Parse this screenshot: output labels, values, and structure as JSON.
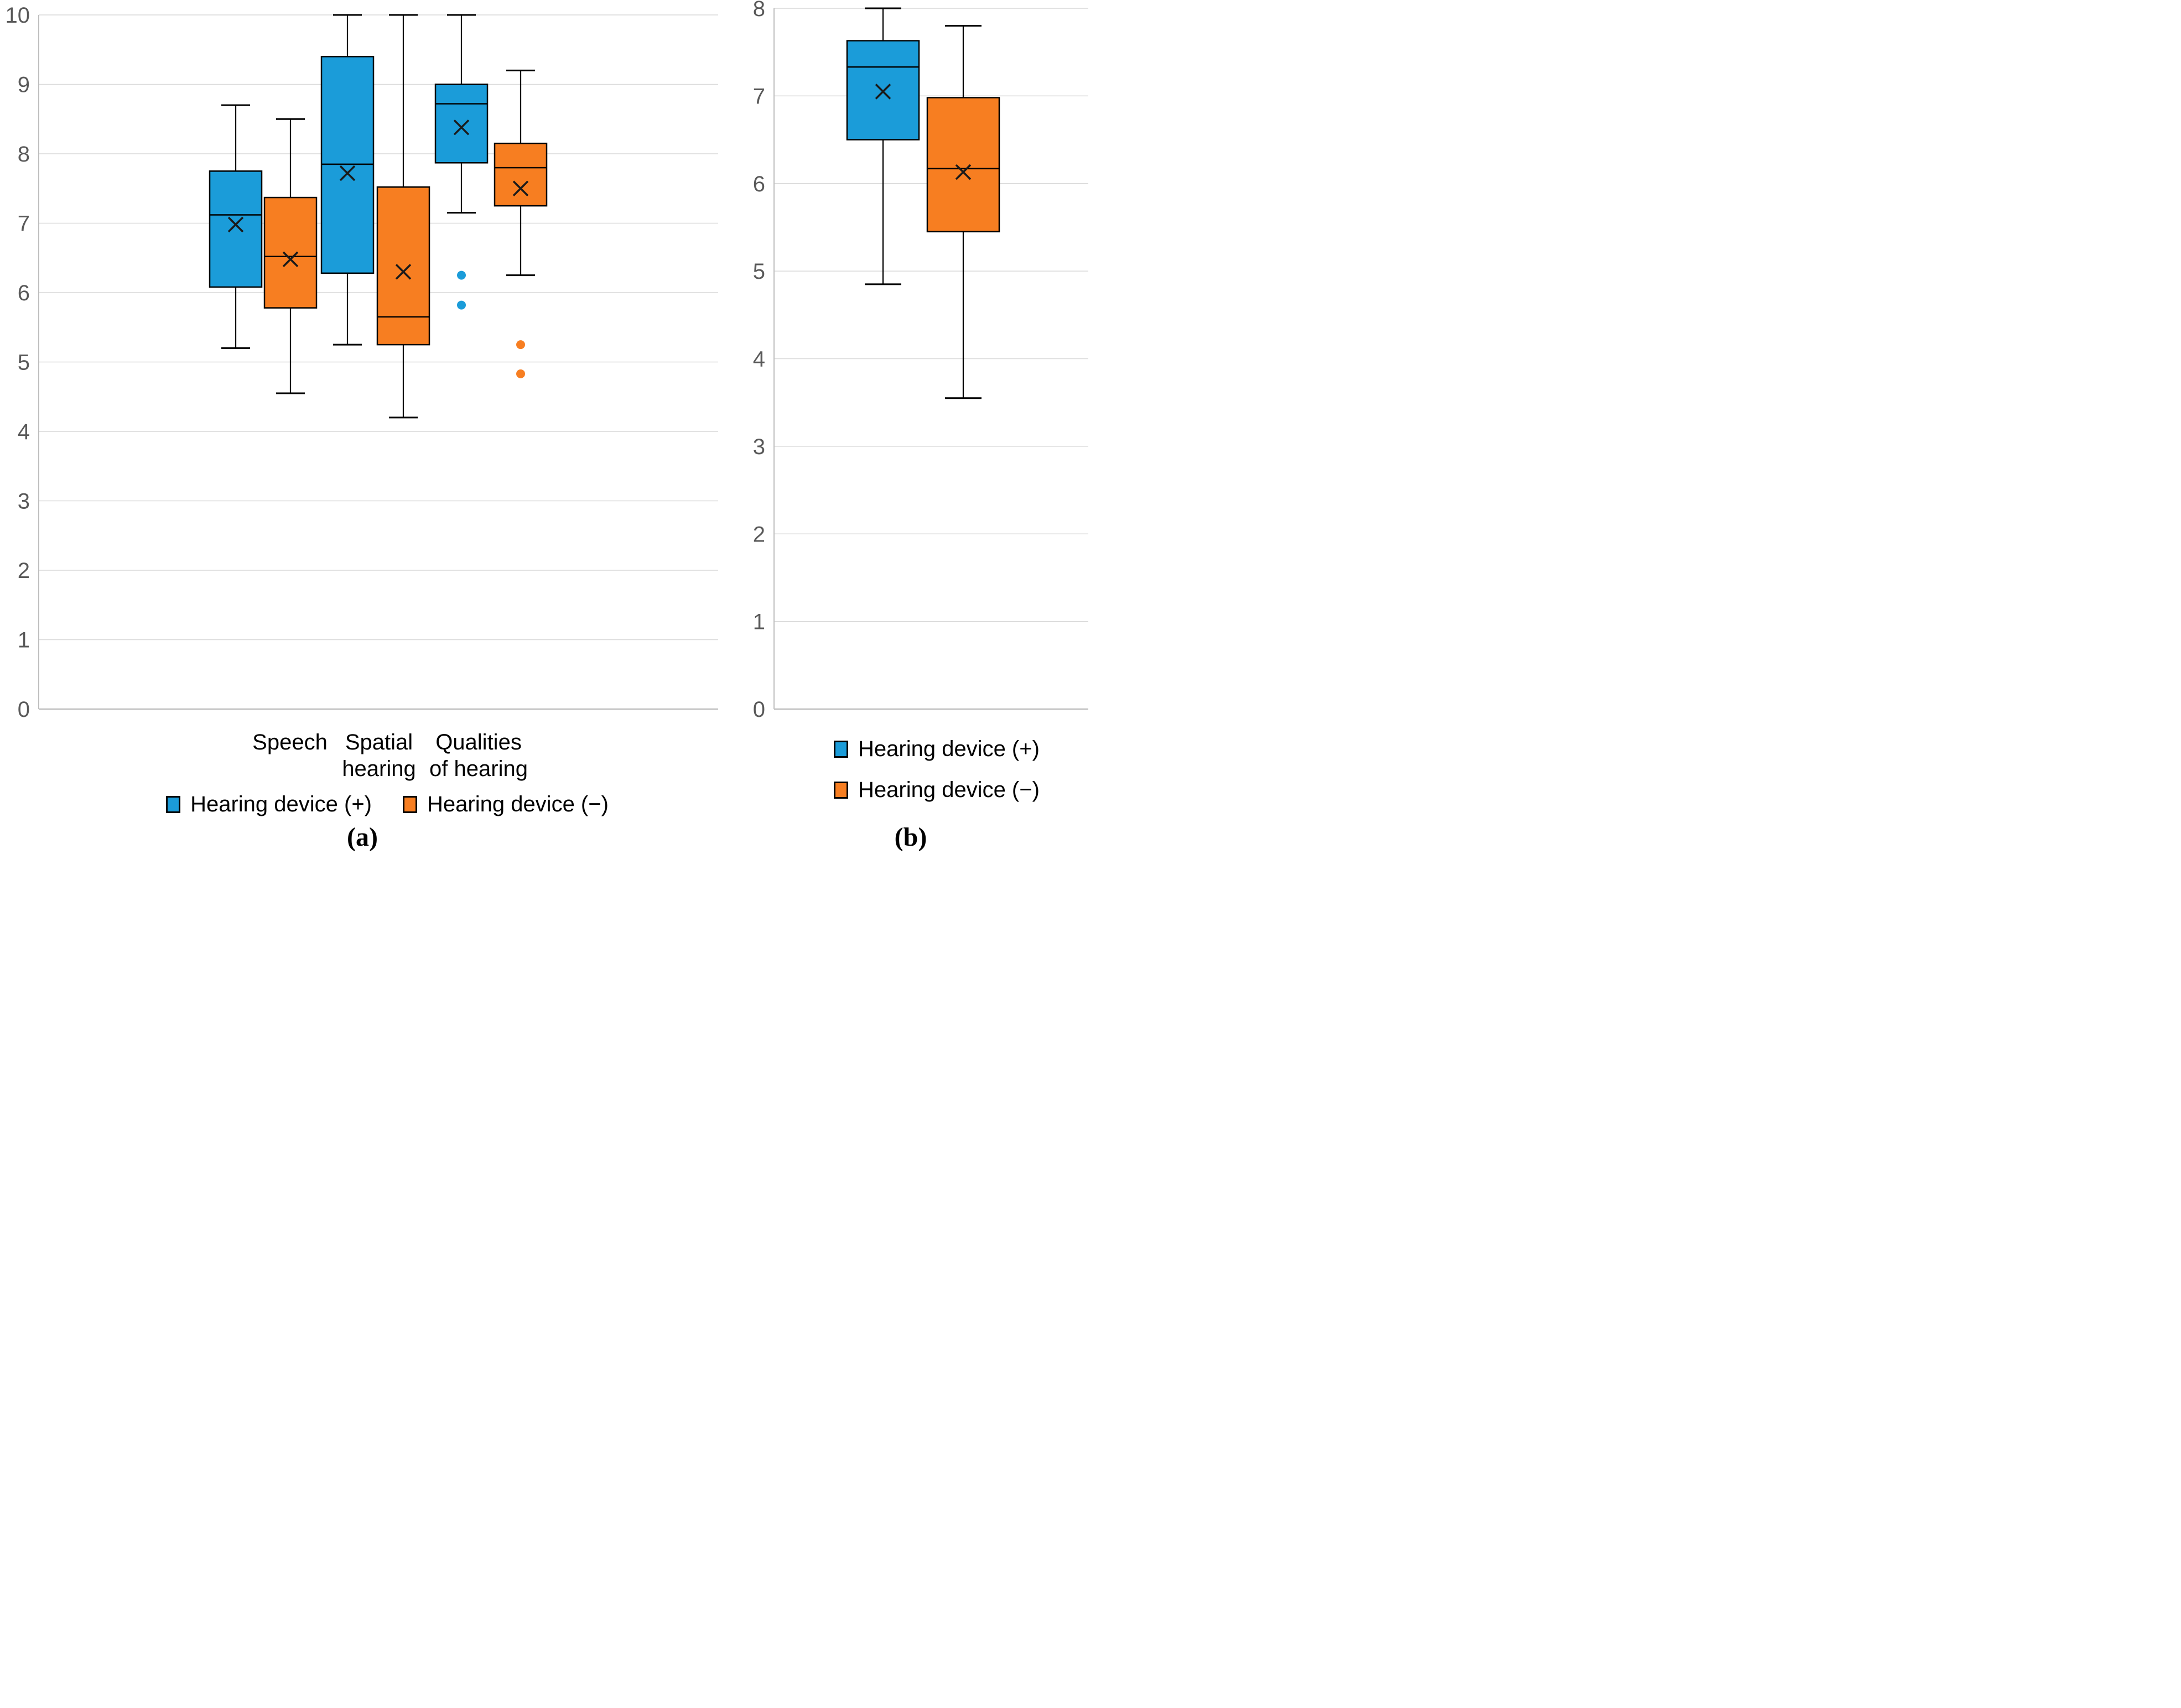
{
  "colors": {
    "series_positive": "#1B9CD9",
    "series_negative": "#F77E21",
    "gridline": "#D9D9D9",
    "axis_line": "#BFBFBF",
    "tick_text": "#595959",
    "box_stroke": "#000000"
  },
  "chart_data": [
    {
      "type": "boxplot",
      "caption": "(a)",
      "title": "",
      "xlabel": "",
      "ylabel": "",
      "ylim": [
        0,
        10
      ],
      "grid": true,
      "legend_position": "bottom-row",
      "yticks": [
        10,
        9,
        8,
        7,
        6,
        5,
        4,
        3,
        2,
        1,
        0
      ],
      "categories": [
        "Speech",
        "Spatial hearing",
        "Qualities of hearing"
      ],
      "category_label_lines": [
        [
          "Speech",
          ""
        ],
        [
          "Spatial",
          "hearing"
        ],
        [
          "Qualities",
          "of hearing"
        ]
      ],
      "series": [
        {
          "name": "Hearing device (+)",
          "color": "#1B9CD9",
          "points": [
            {
              "category": "Speech",
              "min": 5.2,
              "q1": 6.08,
              "median": 7.12,
              "q3": 7.75,
              "max": 8.7,
              "mean": 6.98,
              "outliers": []
            },
            {
              "category": "Spatial hearing",
              "min": 5.25,
              "q1": 6.28,
              "median": 7.85,
              "q3": 9.4,
              "max": 10,
              "mean": 7.72,
              "outliers": []
            },
            {
              "category": "Qualities of hearing",
              "min": 7.15,
              "q1": 7.87,
              "median": 8.72,
              "q3": 9.0,
              "max": 10,
              "mean": 8.38,
              "outliers": [
                6.25,
                5.82
              ]
            }
          ]
        },
        {
          "name": "Hearing device (−)",
          "color": "#F77E21",
          "points": [
            {
              "category": "Speech",
              "min": 4.55,
              "q1": 5.78,
              "median": 6.52,
              "q3": 7.37,
              "max": 8.5,
              "mean": 6.48,
              "outliers": []
            },
            {
              "category": "Spatial hearing",
              "min": 4.2,
              "q1": 5.25,
              "median": 5.65,
              "q3": 7.52,
              "max": 10,
              "mean": 6.3,
              "outliers": []
            },
            {
              "category": "Qualities of hearing",
              "min": 6.25,
              "q1": 7.25,
              "median": 7.8,
              "q3": 8.15,
              "max": 9.2,
              "mean": 7.5,
              "outliers": [
                5.25,
                4.83
              ]
            }
          ]
        }
      ]
    },
    {
      "type": "boxplot",
      "caption": "(b)",
      "title": "",
      "xlabel": "",
      "ylabel": "",
      "ylim": [
        0,
        8
      ],
      "grid": true,
      "legend_position": "bottom-stacked",
      "yticks": [
        8,
        7,
        6,
        5,
        4,
        3,
        2,
        1,
        0
      ],
      "categories": [
        ""
      ],
      "category_label_lines": [],
      "series": [
        {
          "name": "Hearing device (+)",
          "color": "#1B9CD9",
          "points": [
            {
              "category": "",
              "min": 4.85,
              "q1": 6.5,
              "median": 7.33,
              "q3": 7.63,
              "max": 8.0,
              "mean": 7.05,
              "outliers": []
            }
          ]
        },
        {
          "name": "Hearing device (−)",
          "color": "#F77E21",
          "points": [
            {
              "category": "",
              "min": 3.55,
              "q1": 5.45,
              "median": 6.17,
              "q3": 6.98,
              "max": 7.8,
              "mean": 6.13,
              "outliers": []
            }
          ]
        }
      ]
    }
  ]
}
